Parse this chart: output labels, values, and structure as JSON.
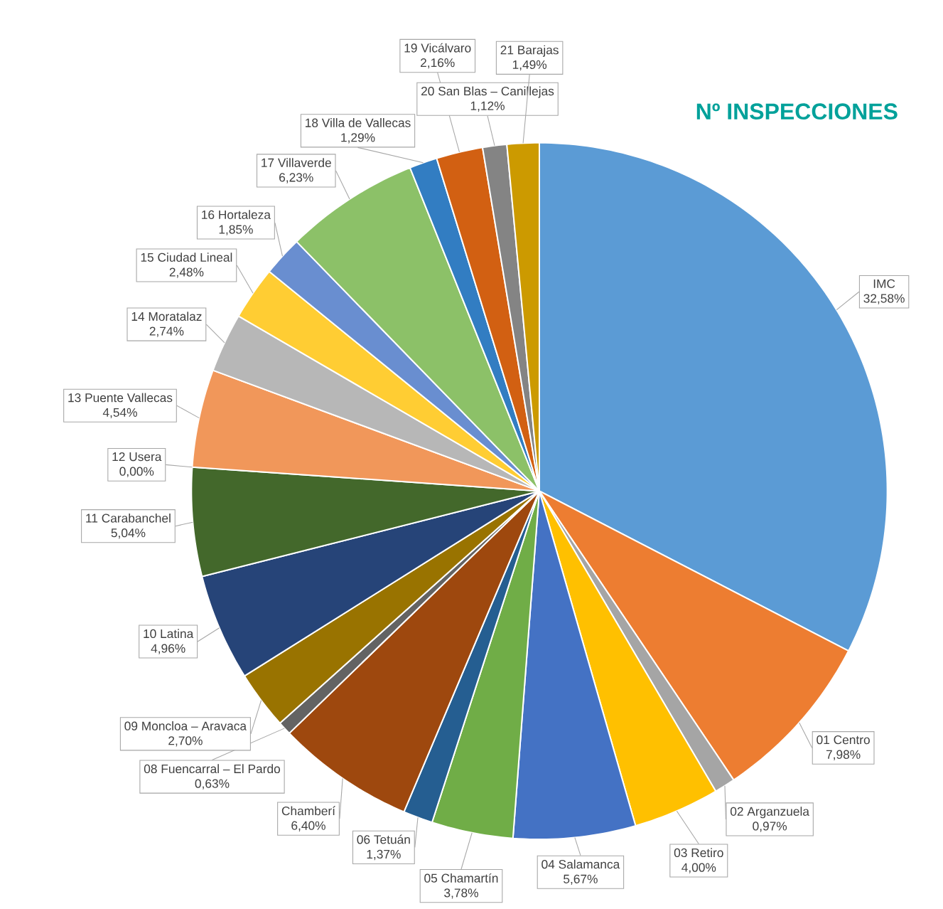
{
  "chart_data": {
    "type": "pie",
    "title": "Nº INSPECCIONES",
    "categories": [
      "IMC",
      "01 Centro",
      "02 Arganzuela",
      "03 Retiro",
      "04 Salamanca",
      "05 Chamartín",
      "06 Tetuán",
      "Chamberí",
      "08 Fuencarral – El Pardo",
      "09 Moncloa – Aravaca",
      "10 Latina",
      "11 Carabanchel",
      "12 Usera",
      "13 Puente Vallecas",
      "14 Moratalaz",
      "15 Ciudad Lineal",
      "16 Hortaleza",
      "17 Villaverde",
      "18 Villa de Vallecas",
      "19 Vicálvaro",
      "20 San Blas – Canillejas",
      "21 Barajas"
    ],
    "values": [
      32.58,
      7.98,
      0.97,
      4.0,
      5.67,
      3.78,
      1.37,
      6.4,
      0.63,
      2.7,
      4.96,
      5.04,
      0.0,
      4.54,
      2.74,
      2.48,
      1.85,
      6.23,
      1.29,
      2.16,
      1.12,
      1.49
    ],
    "value_labels": [
      "32,58%",
      "7,98%",
      "0,97%",
      "4,00%",
      "5,67%",
      "3,78%",
      "1,37%",
      "6,40%",
      "0,63%",
      "2,70%",
      "4,96%",
      "5,04%",
      "0,00%",
      "4,54%",
      "2,74%",
      "2,48%",
      "1,85%",
      "6,23%",
      "1,29%",
      "2,16%",
      "1,12%",
      "1,49%"
    ],
    "colors": [
      "#5b9bd5",
      "#ed7d31",
      "#a5a5a5",
      "#ffc000",
      "#4472c4",
      "#70ad47",
      "#255e91",
      "#9e480e",
      "#636363",
      "#997300",
      "#264478",
      "#43682b",
      "#7cafdd",
      "#f1975a",
      "#b7b7b7",
      "#ffcd33",
      "#698ed0",
      "#8cc168",
      "#327dc2",
      "#d26012",
      "#848484",
      "#cc9a00"
    ]
  }
}
